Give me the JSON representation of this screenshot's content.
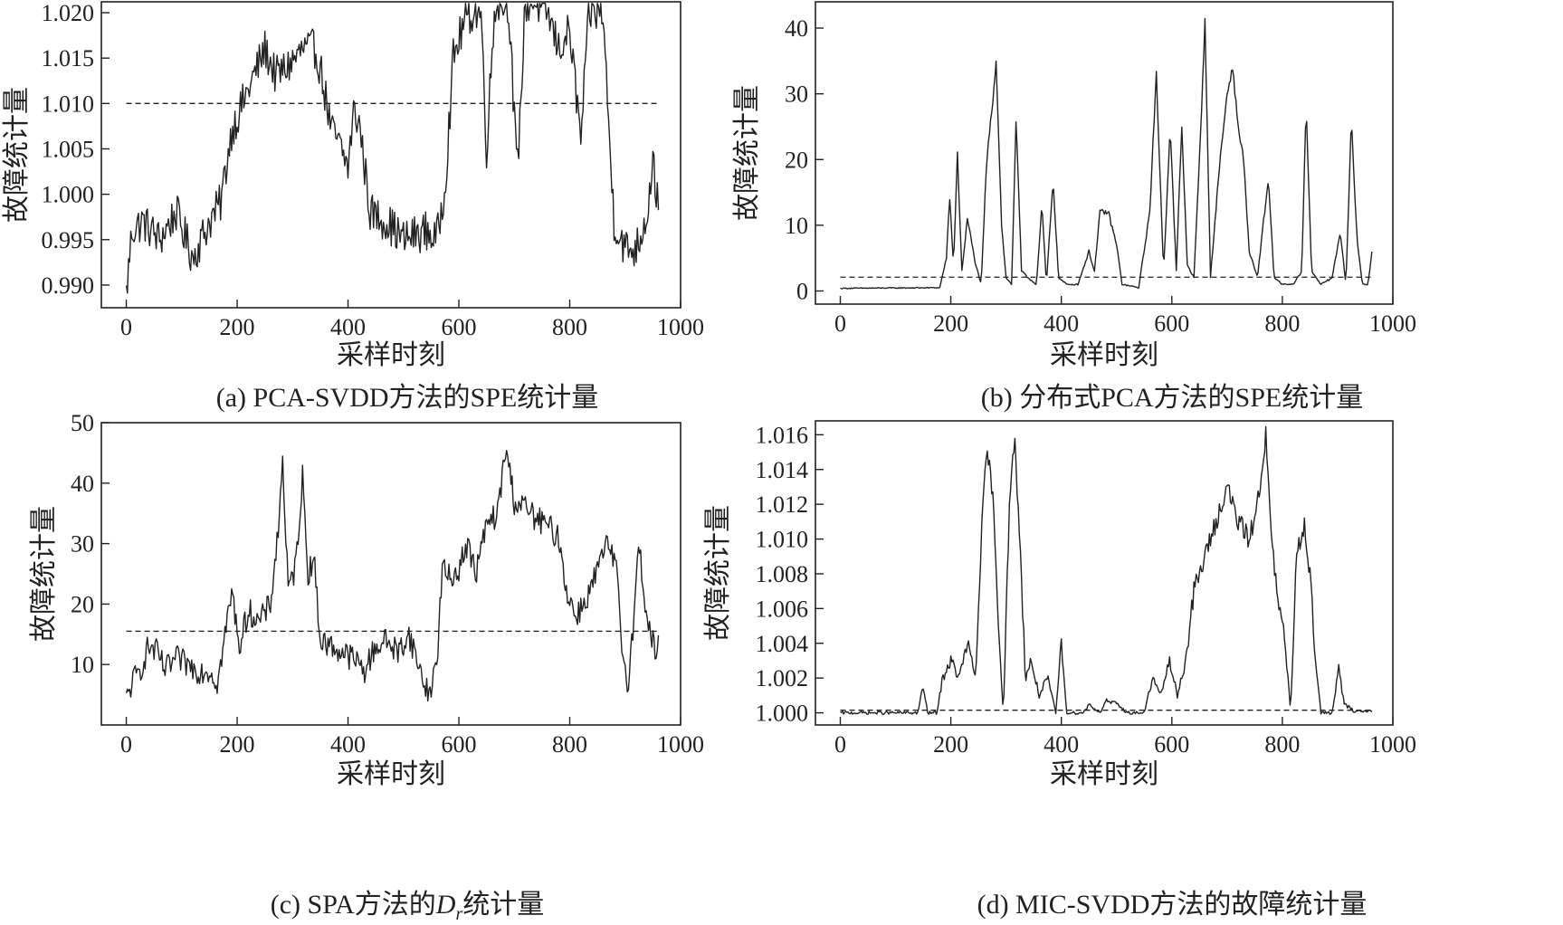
{
  "chart_data": [
    {
      "type": "line",
      "id": "a",
      "caption_parts": [
        {
          "text": "(a) PCA-SVDD方法的SPE统计量"
        }
      ],
      "xlabel": "采样时刻",
      "ylabel": "故障统计量",
      "xlim": [
        -45,
        1000
      ],
      "ylim": [
        0.9875,
        1.0212
      ],
      "xticks": [
        0,
        200,
        400,
        600,
        800,
        1000
      ],
      "yticks": [
        0.99,
        0.995,
        1.0,
        1.005,
        1.01,
        1.015,
        1.02
      ],
      "ytick_labels": [
        "0.990",
        "0.995",
        "1.000",
        "1.005",
        "1.010",
        "1.015",
        "1.020"
      ],
      "threshold": 1.01,
      "threshold_x": [
        0,
        960
      ],
      "series_style": "noisy",
      "series_keypoints": [
        [
          0,
          0.989
        ],
        [
          10,
          0.996
        ],
        [
          30,
          0.997
        ],
        [
          60,
          0.995
        ],
        [
          90,
          0.998
        ],
        [
          120,
          0.993
        ],
        [
          150,
          0.997
        ],
        [
          170,
          0.999
        ],
        [
          190,
          1.007
        ],
        [
          210,
          1.01
        ],
        [
          230,
          1.013
        ],
        [
          250,
          1.016
        ],
        [
          270,
          1.013
        ],
        [
          290,
          1.014
        ],
        [
          320,
          1.016
        ],
        [
          340,
          1.016
        ],
        [
          350,
          1.014
        ],
        [
          370,
          1.007
        ],
        [
          380,
          1.006
        ],
        [
          400,
          1.003
        ],
        [
          410,
          1.009
        ],
        [
          420,
          1.008
        ],
        [
          440,
          0.998
        ],
        [
          470,
          0.997
        ],
        [
          500,
          0.995
        ],
        [
          540,
          0.996
        ],
        [
          560,
          0.995
        ],
        [
          575,
          1.001
        ],
        [
          590,
          1.015
        ],
        [
          610,
          1.019
        ],
        [
          625,
          1.02
        ],
        [
          640,
          1.02
        ],
        [
          650,
          1.005
        ],
        [
          665,
          1.021
        ],
        [
          690,
          1.021
        ],
        [
          705,
          1.002
        ],
        [
          720,
          1.021
        ],
        [
          740,
          1.021
        ],
        [
          760,
          1.02
        ],
        [
          780,
          1.016
        ],
        [
          800,
          1.018
        ],
        [
          820,
          1.006
        ],
        [
          835,
          1.02
        ],
        [
          860,
          1.02
        ],
        [
          870,
          1.008
        ],
        [
          880,
          0.997
        ],
        [
          900,
          0.994
        ],
        [
          920,
          0.994
        ],
        [
          940,
          0.998
        ],
        [
          950,
          1.004
        ],
        [
          960,
          0.998
        ]
      ],
      "series_noise": 0.0022
    },
    {
      "type": "line",
      "id": "b",
      "caption_parts": [
        {
          "text": "(b) 分布式PCA方法的SPE统计量"
        }
      ],
      "xlabel": "采样时刻",
      "ylabel": "故障统计量",
      "xlim": [
        -45,
        1000
      ],
      "ylim": [
        -2,
        44
      ],
      "xticks": [
        0,
        200,
        400,
        600,
        800,
        1000
      ],
      "yticks": [
        0,
        10,
        20,
        30,
        40
      ],
      "ytick_labels": [
        "0",
        "10",
        "20",
        "30",
        "40"
      ],
      "threshold": 2.1,
      "threshold_x": [
        0,
        960
      ],
      "series_style": "peaks",
      "series_keypoints": [
        [
          0,
          0.4
        ],
        [
          180,
          0.5
        ],
        [
          192,
          5
        ],
        [
          198,
          14
        ],
        [
          205,
          4
        ],
        [
          212,
          21
        ],
        [
          220,
          3
        ],
        [
          230,
          11
        ],
        [
          245,
          4
        ],
        [
          255,
          1
        ],
        [
          265,
          20
        ],
        [
          275,
          28
        ],
        [
          282,
          35
        ],
        [
          292,
          10
        ],
        [
          300,
          2
        ],
        [
          310,
          1
        ],
        [
          318,
          26
        ],
        [
          328,
          3
        ],
        [
          340,
          2
        ],
        [
          355,
          1
        ],
        [
          365,
          13
        ],
        [
          373,
          1
        ],
        [
          385,
          17
        ],
        [
          395,
          2
        ],
        [
          410,
          1
        ],
        [
          430,
          1
        ],
        [
          450,
          6
        ],
        [
          460,
          3
        ],
        [
          470,
          12
        ],
        [
          485,
          12
        ],
        [
          500,
          7
        ],
        [
          510,
          1
        ],
        [
          540,
          0.5
        ],
        [
          560,
          12
        ],
        [
          572,
          33
        ],
        [
          585,
          3
        ],
        [
          597,
          25
        ],
        [
          608,
          3
        ],
        [
          618,
          25
        ],
        [
          628,
          4
        ],
        [
          640,
          2
        ],
        [
          650,
          20
        ],
        [
          660,
          41
        ],
        [
          670,
          2
        ],
        [
          685,
          18
        ],
        [
          700,
          30
        ],
        [
          710,
          34
        ],
        [
          720,
          25
        ],
        [
          730,
          20
        ],
        [
          740,
          6
        ],
        [
          755,
          2
        ],
        [
          765,
          10
        ],
        [
          775,
          17
        ],
        [
          785,
          2
        ],
        [
          800,
          1
        ],
        [
          820,
          1
        ],
        [
          835,
          3
        ],
        [
          843,
          28
        ],
        [
          853,
          3
        ],
        [
          870,
          1
        ],
        [
          890,
          2
        ],
        [
          905,
          9
        ],
        [
          915,
          1
        ],
        [
          925,
          26
        ],
        [
          935,
          8
        ],
        [
          945,
          1
        ],
        [
          955,
          1
        ],
        [
          962,
          6
        ]
      ],
      "series_noise": 0.5
    },
    {
      "type": "line",
      "id": "c",
      "caption_parts": [
        {
          "text": "(c) SPA方法的"
        },
        {
          "text": "D",
          "italic": true
        },
        {
          "text": "r",
          "italic": true,
          "sub": true
        },
        {
          "text": "统计量"
        }
      ],
      "xlabel": "采样时刻",
      "ylabel": "故障统计量",
      "xlim": [
        -45,
        1000
      ],
      "ylim": [
        0,
        50
      ],
      "xticks": [
        0,
        200,
        400,
        600,
        800,
        1000
      ],
      "yticks": [
        10,
        20,
        30,
        40,
        50
      ],
      "ytick_labels": [
        "10",
        "20",
        "30",
        "40",
        "50"
      ],
      "threshold": 15.5,
      "threshold_x": [
        0,
        960
      ],
      "series_style": "noisy",
      "series_keypoints": [
        [
          0,
          4
        ],
        [
          10,
          7
        ],
        [
          25,
          9
        ],
        [
          40,
          13
        ],
        [
          55,
          12
        ],
        [
          70,
          9
        ],
        [
          90,
          11
        ],
        [
          110,
          10
        ],
        [
          130,
          9
        ],
        [
          150,
          9
        ],
        [
          165,
          7
        ],
        [
          180,
          16
        ],
        [
          190,
          22
        ],
        [
          205,
          13
        ],
        [
          220,
          19
        ],
        [
          240,
          17
        ],
        [
          260,
          20
        ],
        [
          275,
          33
        ],
        [
          282,
          44
        ],
        [
          292,
          22
        ],
        [
          305,
          26
        ],
        [
          318,
          41
        ],
        [
          328,
          25
        ],
        [
          338,
          28
        ],
        [
          350,
          14
        ],
        [
          370,
          13
        ],
        [
          390,
          12
        ],
        [
          410,
          11
        ],
        [
          430,
          9
        ],
        [
          450,
          13
        ],
        [
          470,
          14
        ],
        [
          490,
          12
        ],
        [
          510,
          15
        ],
        [
          530,
          9
        ],
        [
          545,
          5
        ],
        [
          560,
          10
        ],
        [
          570,
          26
        ],
        [
          585,
          24
        ],
        [
          600,
          26
        ],
        [
          615,
          30
        ],
        [
          630,
          25
        ],
        [
          650,
          33
        ],
        [
          670,
          35
        ],
        [
          685,
          46
        ],
        [
          700,
          37
        ],
        [
          720,
          36
        ],
        [
          740,
          34
        ],
        [
          760,
          33
        ],
        [
          780,
          31
        ],
        [
          795,
          22
        ],
        [
          810,
          18
        ],
        [
          825,
          20
        ],
        [
          840,
          23
        ],
        [
          855,
          27
        ],
        [
          870,
          30
        ],
        [
          885,
          25
        ],
        [
          895,
          12
        ],
        [
          905,
          7
        ],
        [
          915,
          17
        ],
        [
          925,
          30
        ],
        [
          940,
          17
        ],
        [
          955,
          12
        ],
        [
          960,
          13
        ]
      ],
      "series_noise": 2.2
    },
    {
      "type": "line",
      "id": "d",
      "caption_parts": [
        {
          "text": "(d) MIC-SVDD方法的故障统计量"
        }
      ],
      "xlabel": "采样时刻",
      "ylabel": "故障统计量",
      "xlim": [
        -45,
        1000
      ],
      "ylim": [
        0.9993,
        1.0168
      ],
      "xticks": [
        0,
        200,
        400,
        600,
        800,
        1000
      ],
      "yticks": [
        1.0,
        1.002,
        1.004,
        1.006,
        1.008,
        1.01,
        1.012,
        1.014,
        1.016
      ],
      "ytick_labels": [
        "1.000",
        "1.002",
        "1.004",
        "1.006",
        "1.008",
        "1.010",
        "1.012",
        "1.014",
        "1.016"
      ],
      "threshold": 1.00015,
      "threshold_x": [
        0,
        960
      ],
      "series_style": "peaks",
      "series_keypoints": [
        [
          0,
          1.0
        ],
        [
          140,
          1.0
        ],
        [
          150,
          1.0015
        ],
        [
          158,
          1.0
        ],
        [
          175,
          1.0
        ],
        [
          185,
          1.002
        ],
        [
          200,
          1.003
        ],
        [
          215,
          1.002
        ],
        [
          230,
          1.004
        ],
        [
          245,
          1.002
        ],
        [
          255,
          1.01
        ],
        [
          265,
          1.015
        ],
        [
          275,
          1.013
        ],
        [
          285,
          1.006
        ],
        [
          295,
          1.0
        ],
        [
          305,
          1.011
        ],
        [
          315,
          1.016
        ],
        [
          325,
          1.01
        ],
        [
          335,
          1.002
        ],
        [
          345,
          1.003
        ],
        [
          360,
          1.001
        ],
        [
          375,
          1.002
        ],
        [
          390,
          1.0
        ],
        [
          400,
          1.004
        ],
        [
          410,
          1.0
        ],
        [
          440,
          1.0
        ],
        [
          450,
          1.0005
        ],
        [
          470,
          1.0
        ],
        [
          480,
          1.0007
        ],
        [
          500,
          1.0005
        ],
        [
          520,
          1.0
        ],
        [
          550,
          1.0
        ],
        [
          565,
          1.002
        ],
        [
          580,
          1.001
        ],
        [
          595,
          1.003
        ],
        [
          610,
          1.001
        ],
        [
          625,
          1.003
        ],
        [
          640,
          1.007
        ],
        [
          660,
          1.009
        ],
        [
          680,
          1.011
        ],
        [
          700,
          1.013
        ],
        [
          720,
          1.011
        ],
        [
          740,
          1.01
        ],
        [
          755,
          1.012
        ],
        [
          770,
          1.016
        ],
        [
          780,
          1.01
        ],
        [
          790,
          1.007
        ],
        [
          805,
          1.004
        ],
        [
          815,
          1.0
        ],
        [
          825,
          1.009
        ],
        [
          840,
          1.011
        ],
        [
          850,
          1.008
        ],
        [
          860,
          1.003
        ],
        [
          870,
          1.0
        ],
        [
          890,
          1.0
        ],
        [
          902,
          1.0025
        ],
        [
          912,
          1.0005
        ],
        [
          930,
          1.0001
        ],
        [
          962,
          1.0001
        ]
      ],
      "series_noise": 0.0006
    }
  ]
}
